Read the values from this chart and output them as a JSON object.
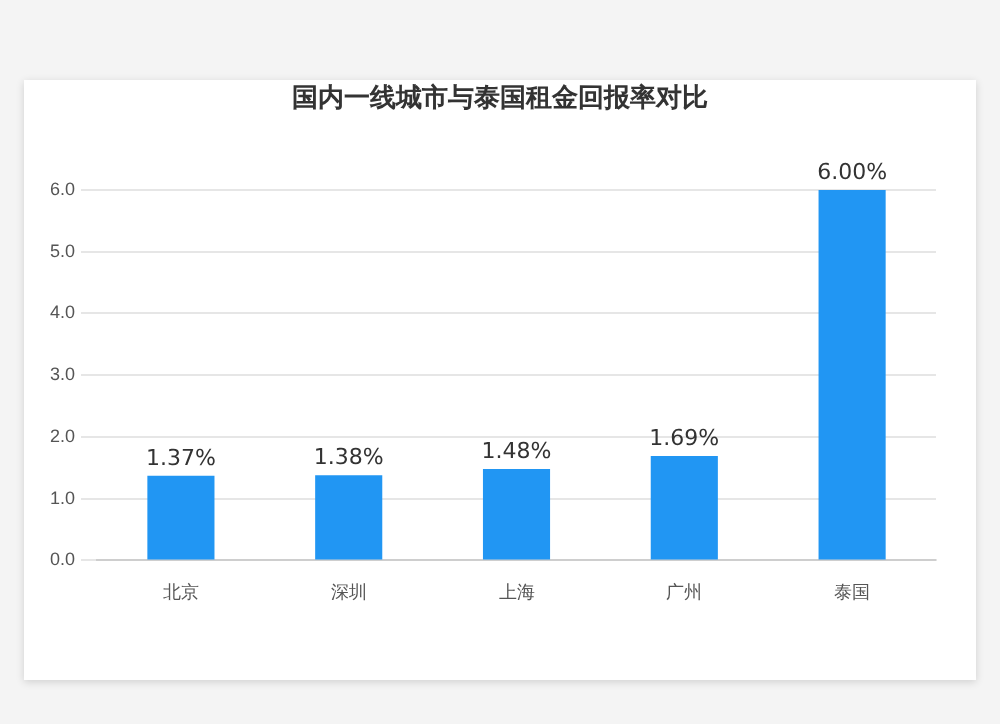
{
  "chart_data": {
    "type": "bar",
    "title": "国内一线城市与泰国租金回报率对比",
    "categories": [
      "北京",
      "深圳",
      "上海",
      "广州",
      "泰国"
    ],
    "values": [
      1.37,
      1.38,
      1.48,
      1.69,
      6.0
    ],
    "value_labels": [
      "1.37%",
      "1.38%",
      "1.48%",
      "1.69%",
      "6.00%"
    ],
    "color": "#2196f3",
    "ylim": [
      0,
      6
    ],
    "yticks": [
      {
        "value": 0,
        "label": "0.0"
      },
      {
        "value": 1,
        "label": "1.0"
      },
      {
        "value": 2,
        "label": "2.0"
      },
      {
        "value": 3,
        "label": "3.0"
      },
      {
        "value": 4,
        "label": "4.0"
      },
      {
        "value": 5,
        "label": "5.0"
      },
      {
        "value": 6,
        "label": "6.0"
      }
    ],
    "grid": "y",
    "legend": false
  }
}
